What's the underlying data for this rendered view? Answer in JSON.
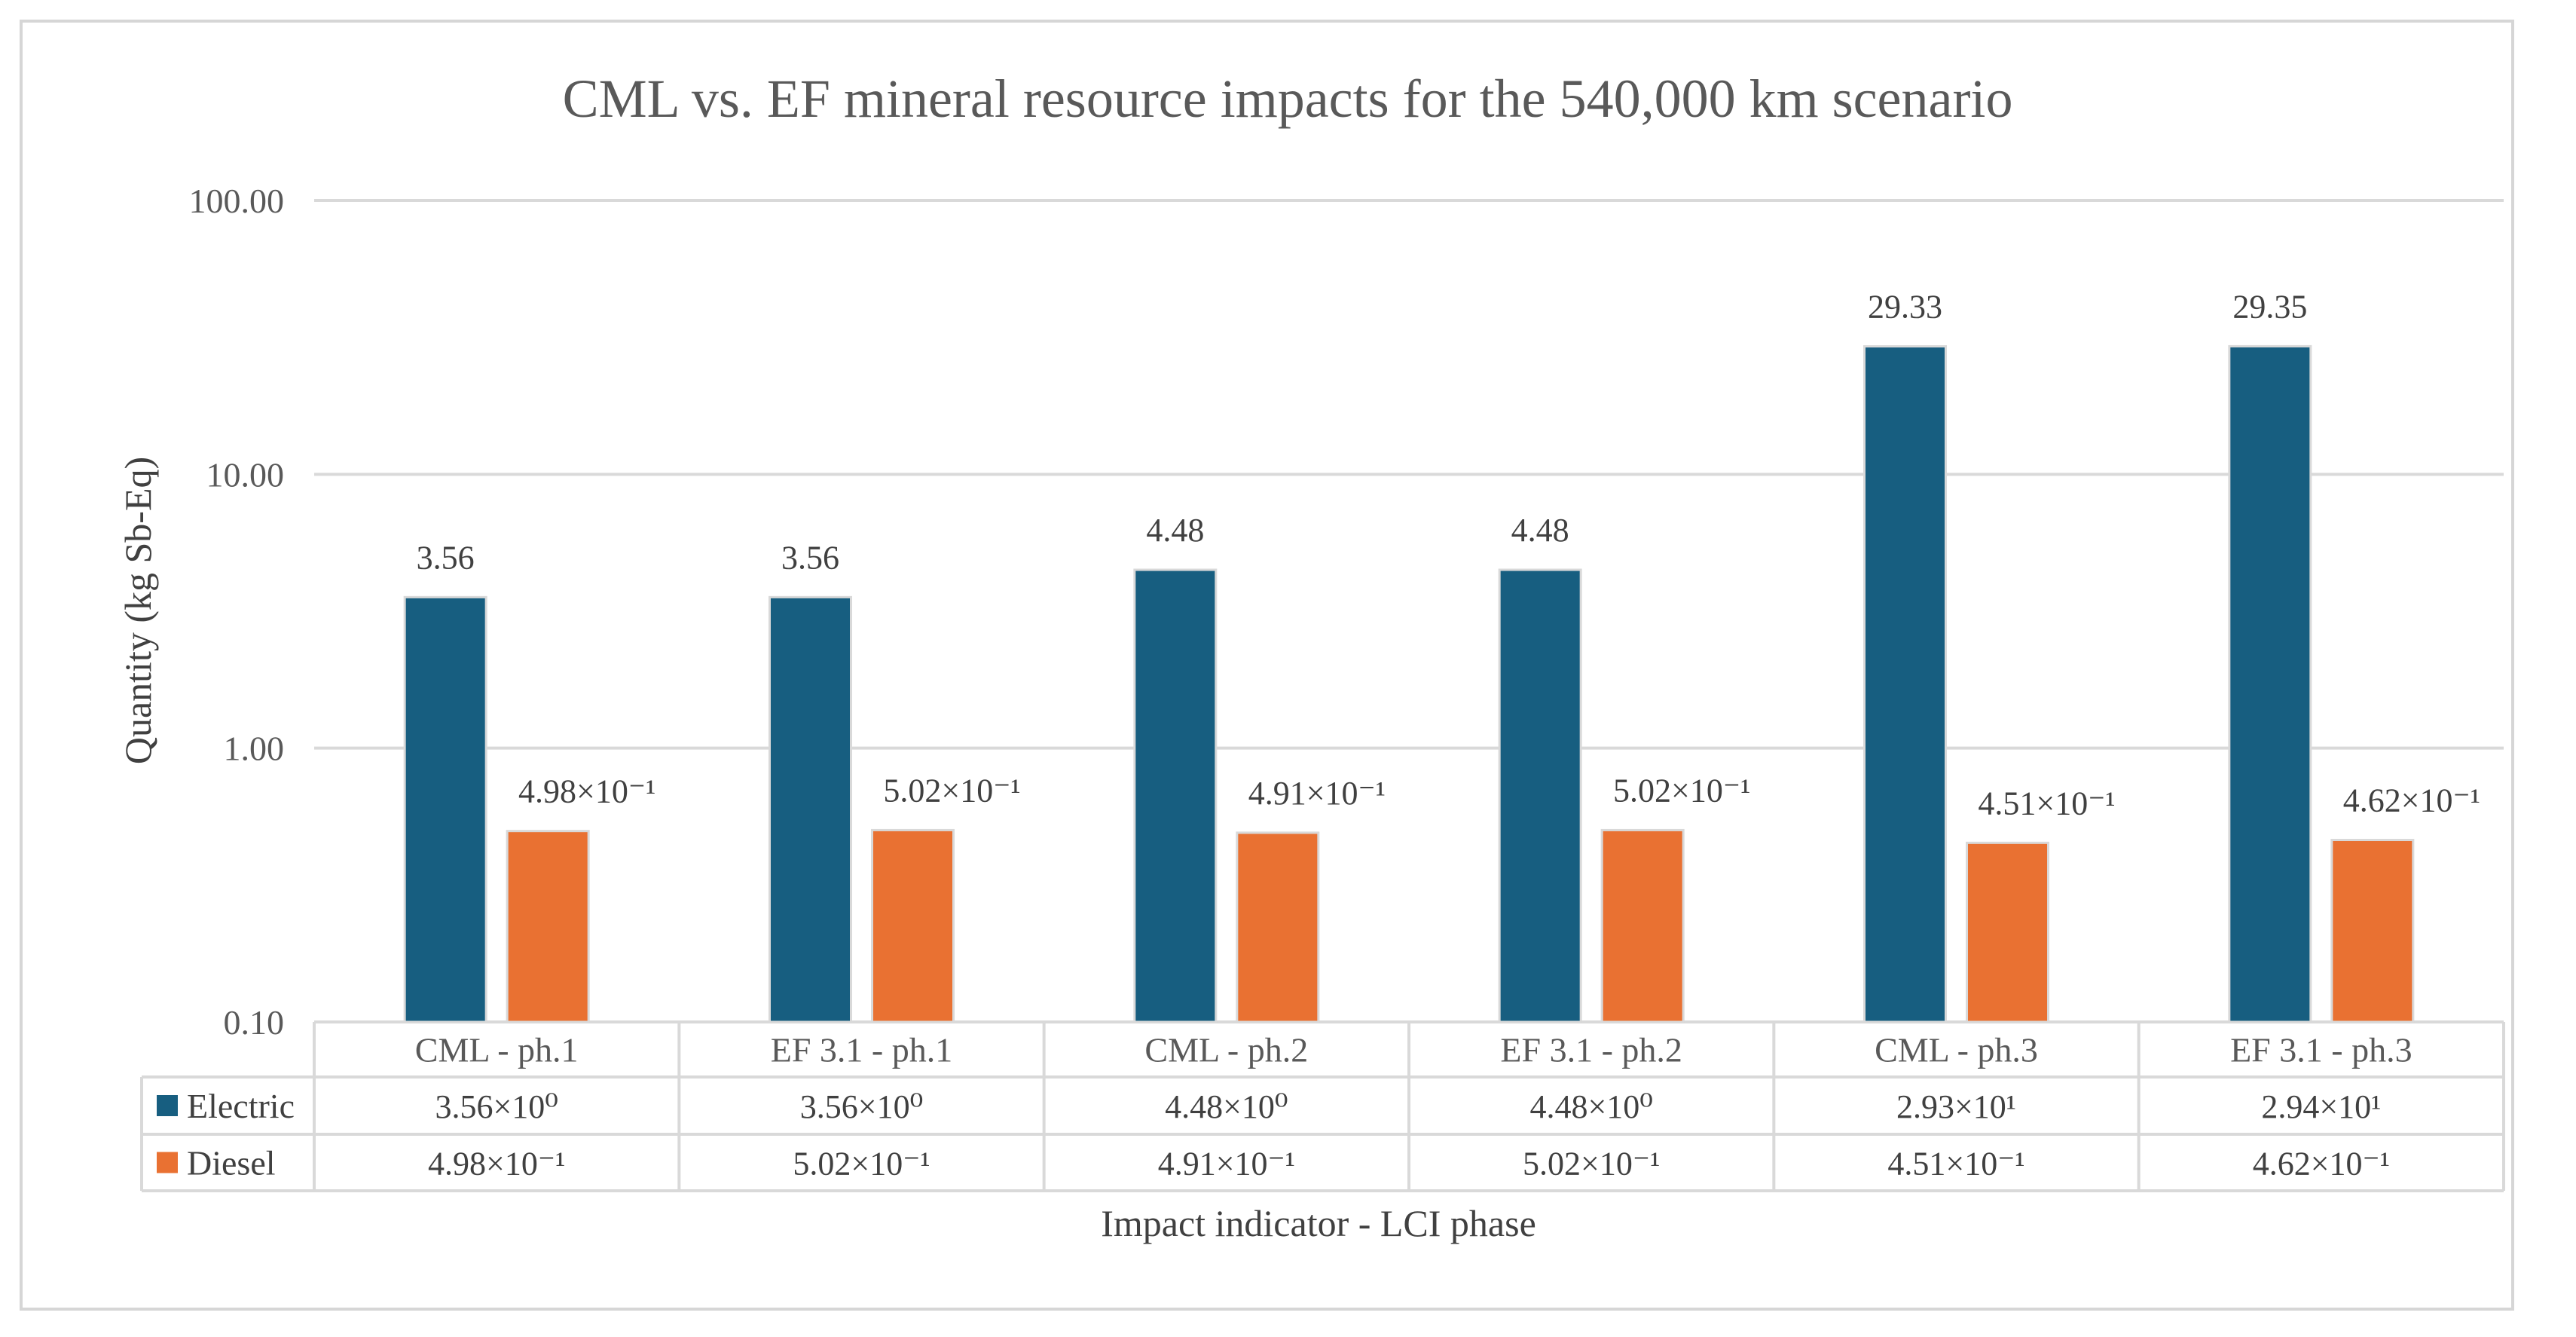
{
  "chart_data": {
    "type": "bar",
    "title": "CML vs. EF mineral resource impacts for the 540,000 km scenario",
    "xlabel": "Impact indicator - LCI phase",
    "ylabel": "Quantity (kg Sb-Eq)",
    "yscale": "log",
    "ylim": [
      0.1,
      100
    ],
    "yticks": [
      "0.10",
      "1.00",
      "10.00",
      "100.00"
    ],
    "grid": true,
    "legend": "data-table",
    "categories": [
      "CML - ph.1",
      "EF 3.1  - ph.1",
      "CML - ph.2",
      "EF 3.1  - ph.2",
      "CML - ph.3",
      "EF 3.1 - ph.3"
    ],
    "series": [
      {
        "name": "Electric",
        "color": "#175e80",
        "values": [
          3.56,
          3.56,
          4.48,
          4.48,
          29.33,
          29.35
        ],
        "labels": [
          "3.56",
          "3.56",
          "4.48",
          "4.48",
          "29.33",
          "29.35"
        ],
        "table": [
          "3.56×10⁰",
          "3.56×10⁰",
          "4.48×10⁰",
          "4.48×10⁰",
          "2.93×10¹",
          "2.94×10¹"
        ]
      },
      {
        "name": "Diesel",
        "color": "#e97132",
        "values": [
          0.498,
          0.502,
          0.491,
          0.502,
          0.451,
          0.462
        ],
        "labels": [
          "4.98×10⁻¹",
          "5.02×10⁻¹",
          "4.91×10⁻¹",
          "5.02×10⁻¹",
          "4.51×10⁻¹",
          "4.62×10⁻¹"
        ],
        "table": [
          "4.98×10⁻¹",
          "5.02×10⁻¹",
          "4.91×10⁻¹",
          "5.02×10⁻¹",
          "4.51×10⁻¹",
          "4.62×10⁻¹"
        ]
      }
    ]
  }
}
